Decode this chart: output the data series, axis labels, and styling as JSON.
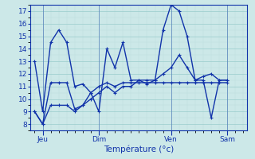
{
  "xlabel": "Température (°c)",
  "background_color": "#cce8e8",
  "grid_color_major": "#99cccc",
  "grid_color_minor": "#bbdddd",
  "line_color": "#1133aa",
  "tick_label_color": "#1133aa",
  "xlabel_color": "#1133aa",
  "ylim": [
    7.5,
    17.5
  ],
  "yticks": [
    8,
    9,
    10,
    11,
    12,
    13,
    14,
    15,
    16,
    17
  ],
  "xlim": [
    -0.5,
    26.5
  ],
  "day_labels": [
    "Jeu",
    "Dim",
    "Ven",
    "Sam"
  ],
  "day_positions": [
    1,
    8,
    17,
    24
  ],
  "series1": [
    13.0,
    9.0,
    14.5,
    15.5,
    14.5,
    11.0,
    11.2,
    10.5,
    9.0,
    14.0,
    12.5,
    14.5,
    11.5,
    11.5,
    11.2,
    11.5,
    15.5,
    17.5,
    17.0,
    15.0,
    11.5,
    11.5,
    8.5,
    11.5,
    11.5
  ],
  "series2": [
    9.0,
    8.0,
    11.3,
    11.3,
    11.3,
    9.2,
    9.5,
    10.5,
    11.0,
    11.3,
    11.0,
    11.3,
    11.3,
    11.3,
    11.3,
    11.3,
    11.3,
    11.3,
    11.3,
    11.3,
    11.3,
    11.3,
    11.3,
    11.3,
    11.3
  ],
  "series3": [
    9.0,
    8.0,
    9.5,
    9.5,
    9.5,
    9.0,
    9.5,
    10.0,
    10.5,
    11.0,
    10.5,
    11.0,
    11.0,
    11.5,
    11.5,
    11.5,
    12.0,
    12.5,
    13.5,
    12.5,
    11.5,
    11.8,
    12.0,
    11.5,
    11.5
  ],
  "ylabel_fontsize": 7,
  "xlabel_fontsize": 7.5,
  "tick_fontsize": 6.5,
  "linewidth": 1.0,
  "markersize": 2.5
}
